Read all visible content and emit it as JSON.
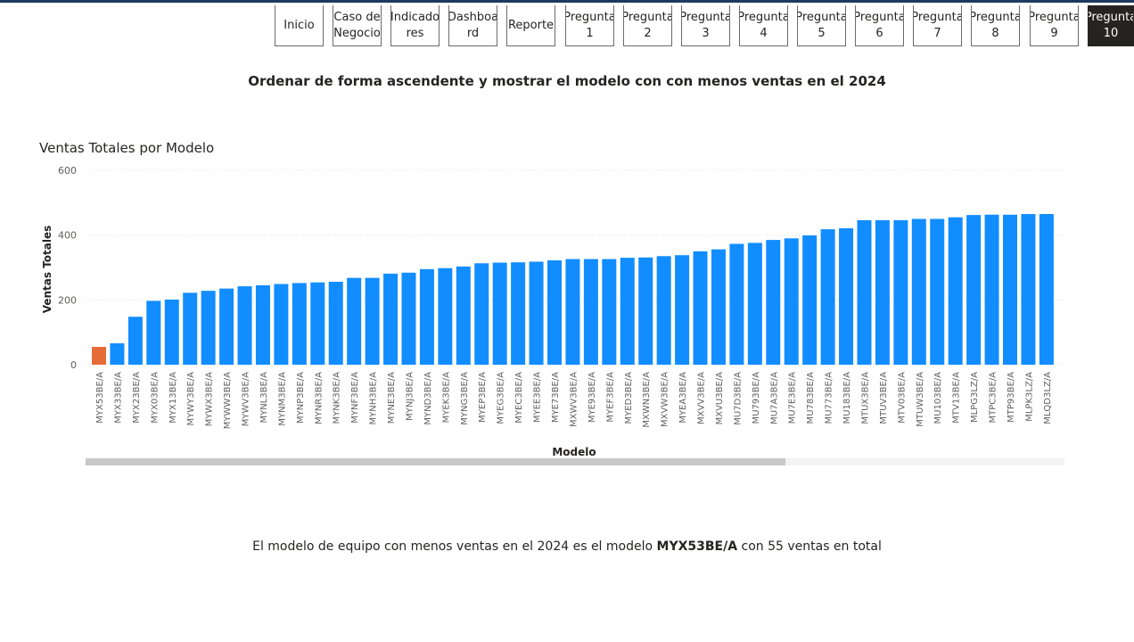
{
  "nav": {
    "buttons": [
      {
        "label": "Inicio",
        "active": false
      },
      {
        "label": "Caso de\nNegocio",
        "active": false
      },
      {
        "label": "Indicado\nres",
        "active": false
      },
      {
        "label": "Dashboa\nrd",
        "active": false
      },
      {
        "label": "Reporte",
        "active": false
      },
      {
        "label": "Pregunta\n1",
        "active": false
      },
      {
        "label": "Pregunta\n2",
        "active": false
      },
      {
        "label": "Pregunta\n3",
        "active": false
      },
      {
        "label": "Pregunta\n4",
        "active": false
      },
      {
        "label": "Pregunta\n5",
        "active": false
      },
      {
        "label": "Pregunta\n6",
        "active": false
      },
      {
        "label": "Pregunta\n7",
        "active": false
      },
      {
        "label": "Pregunta\n8",
        "active": false
      },
      {
        "label": "Pregunta\n9",
        "active": false
      },
      {
        "label": "Pregunta\n10",
        "active": true
      }
    ]
  },
  "page_title": "Ordenar de forma ascendente y mostrar el modelo con con menos ventas en el 2024",
  "chart_title": "Ventas Totales por Modelo",
  "conclusion": {
    "prefix": "El modelo de equipo con menos ventas en el 2024 es el modelo ",
    "model": "MYX53BE/A",
    "suffix": " con 55 ventas en total"
  },
  "colors": {
    "bar": "#118dff",
    "highlight": "#e66c37",
    "active_nav": "#252423"
  },
  "chart_data": {
    "type": "bar",
    "title": "Ventas Totales por Modelo",
    "xlabel": "Modelo",
    "ylabel": "Ventas Totales",
    "ylim": [
      0,
      600
    ],
    "yticks": [
      0,
      200,
      400,
      600
    ],
    "grid": true,
    "highlight_index": 0,
    "categories": [
      "MYX53BE/A",
      "MYX33BE/A",
      "MYX23BE/A",
      "MYX03BE/A",
      "MYX13BE/A",
      "MYWY3BE/A",
      "MYWX3BE/A",
      "MYWW3BE/A",
      "MYWV3BE/A",
      "MYNL3BE/A",
      "MYNM3BE/A",
      "MYNP3BE/A",
      "MYNR3BE/A",
      "MYNK3BE/A",
      "MYNF3BE/A",
      "MYNH3BE/A",
      "MYNE3BE/A",
      "MYNJ3BE/A",
      "MYND3BE/A",
      "MYEK3BE/A",
      "MYNG3BE/A",
      "MYEP3BE/A",
      "MYEG3BE/A",
      "MYEC3BE/A",
      "MYEE3BE/A",
      "MYE73BE/A",
      "MXWV3BE/A",
      "MYE93BE/A",
      "MYEF3BE/A",
      "MYED3BE/A",
      "MXWN3BE/A",
      "MXVW3BE/A",
      "MYEA3BE/A",
      "MXVV3BE/A",
      "MXVU3BE/A",
      "MU7D3BE/A",
      "MU793BE/A",
      "MU7A3BE/A",
      "MU7E3BE/A",
      "MU783BE/A",
      "MU773BE/A",
      "MU183BE/A",
      "MTUX3BE/A",
      "MTUV3BE/A",
      "MTV03BE/A",
      "MTUW3BE/A",
      "MU103BE/A",
      "MTV13BE/A",
      "MLPG3LZ/A",
      "MTPC3BE/A",
      "MTP93BE/A",
      "MLPK3LZ/A",
      "MLQD3LZ/A"
    ],
    "values": [
      55,
      66,
      148,
      197,
      201,
      222,
      228,
      235,
      242,
      245,
      249,
      252,
      254,
      256,
      268,
      268,
      281,
      284,
      295,
      298,
      303,
      313,
      315,
      316,
      318,
      322,
      326,
      326,
      326,
      330,
      331,
      335,
      338,
      350,
      356,
      373,
      376,
      385,
      390,
      399,
      418,
      421,
      446,
      446,
      446,
      450,
      450,
      455,
      462,
      463,
      463,
      465,
      465
    ]
  }
}
